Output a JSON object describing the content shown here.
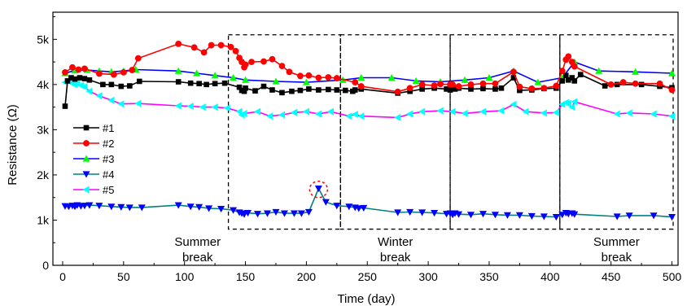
{
  "chart_data": {
    "type": "line",
    "xlabel": "Time (day)",
    "ylabel": "Resistance (Ω)",
    "xlim": [
      -8,
      505
    ],
    "ylim": [
      0,
      5600
    ],
    "xticks": [
      0,
      50,
      100,
      150,
      200,
      250,
      300,
      350,
      400,
      450,
      500
    ],
    "xtick_labels": [
      "0",
      "50",
      "100",
      "150",
      "200",
      "250",
      "300",
      "350",
      "400",
      "450",
      "500"
    ],
    "yticks": [
      0,
      1000,
      2000,
      3000,
      4000,
      5000
    ],
    "ytick_labels": [
      "0",
      "1k",
      "2k",
      "3k",
      "4k",
      "5k"
    ],
    "legend_position": "left",
    "series": [
      {
        "name": "#1",
        "color": "#000000",
        "marker": "square",
        "x": [
          2,
          4,
          7,
          10,
          14,
          18,
          22,
          33,
          40,
          48,
          55,
          63,
          95,
          105,
          112,
          118,
          125,
          133,
          145,
          147,
          149,
          150,
          158,
          165,
          172,
          180,
          188,
          195,
          202,
          210,
          218,
          225,
          232,
          238,
          240,
          245,
          275,
          285,
          295,
          305,
          315,
          318,
          320,
          322,
          325,
          335,
          345,
          355,
          360,
          370,
          375,
          385,
          395,
          405,
          410,
          413,
          415,
          418,
          420,
          425,
          445,
          455,
          475,
          490,
          500
        ],
        "y": [
          3520,
          4080,
          4150,
          4120,
          4150,
          4130,
          4100,
          4000,
          4000,
          3960,
          3970,
          4070,
          4060,
          4030,
          4020,
          4000,
          4020,
          4030,
          3940,
          3870,
          3850,
          3920,
          3860,
          3960,
          3880,
          3820,
          3850,
          3870,
          3900,
          3880,
          3890,
          3880,
          3870,
          3850,
          3880,
          3900,
          3810,
          3850,
          3900,
          3920,
          3900,
          3880,
          3960,
          3900,
          3920,
          3900,
          3910,
          3900,
          3920,
          4150,
          3870,
          3880,
          3910,
          3920,
          4080,
          4200,
          4100,
          4150,
          4080,
          4220,
          3970,
          4000,
          4000,
          3960,
          3930
        ]
      },
      {
        "name": "#2",
        "color": "#ff0000",
        "marker": "circle",
        "x": [
          2,
          8,
          13,
          18,
          30,
          42,
          50,
          57,
          62,
          95,
          108,
          116,
          122,
          130,
          138,
          142,
          145,
          147,
          149,
          150,
          155,
          165,
          172,
          180,
          186,
          195,
          202,
          210,
          218,
          225,
          240,
          245,
          275,
          285,
          295,
          305,
          310,
          318,
          320,
          325,
          335,
          345,
          355,
          370,
          375,
          385,
          395,
          405,
          410,
          413,
          415,
          418,
          420,
          450,
          460,
          470,
          490,
          500
        ],
        "y": [
          4270,
          4380,
          4330,
          4350,
          4240,
          4220,
          4270,
          4320,
          4580,
          4900,
          4820,
          4710,
          4870,
          4870,
          4830,
          4740,
          4590,
          4500,
          4380,
          4440,
          4500,
          4510,
          4560,
          4410,
          4280,
          4190,
          4200,
          4150,
          4160,
          4140,
          4050,
          3960,
          3840,
          3920,
          4000,
          3980,
          4010,
          4000,
          4000,
          3960,
          4000,
          4020,
          4020,
          4280,
          3950,
          3910,
          3920,
          3970,
          4300,
          4550,
          4620,
          4500,
          4400,
          4000,
          4050,
          4020,
          4020,
          3880
        ]
      },
      {
        "name": "#3",
        "color": "#0000ff",
        "marker": "triangle",
        "x": [
          2,
          10,
          20,
          30,
          40,
          50,
          60,
          95,
          110,
          125,
          140,
          150,
          175,
          200,
          230,
          245,
          270,
          290,
          310,
          330,
          350,
          370,
          390,
          410,
          420,
          440,
          470,
          500
        ],
        "y": [
          4250,
          4310,
          4320,
          4300,
          4280,
          4300,
          4330,
          4300,
          4250,
          4200,
          4150,
          4100,
          4070,
          4050,
          4100,
          4150,
          4150,
          4080,
          4060,
          4100,
          4150,
          4300,
          4050,
          4150,
          4500,
          4300,
          4280,
          4250
        ]
      },
      {
        "name": "#4",
        "color": "#008080",
        "marker": "triangle-down",
        "x": [
          2,
          5,
          8,
          10,
          12,
          15,
          18,
          22,
          30,
          40,
          48,
          55,
          65,
          95,
          105,
          112,
          120,
          130,
          140,
          145,
          147,
          149,
          152,
          160,
          168,
          175,
          182,
          190,
          196,
          202,
          210,
          216,
          225,
          235,
          240,
          243,
          247,
          275,
          285,
          295,
          305,
          315,
          318,
          320,
          322,
          325,
          335,
          345,
          355,
          365,
          375,
          385,
          395,
          405,
          410,
          413,
          415,
          418,
          420,
          455,
          465,
          485,
          500
        ],
        "y": [
          1310,
          1300,
          1320,
          1300,
          1330,
          1310,
          1320,
          1330,
          1320,
          1300,
          1290,
          1280,
          1280,
          1330,
          1300,
          1290,
          1260,
          1250,
          1220,
          1170,
          1150,
          1130,
          1160,
          1140,
          1150,
          1180,
          1150,
          1150,
          1150,
          1180,
          1700,
          1400,
          1320,
          1300,
          1280,
          1260,
          1270,
          1170,
          1180,
          1170,
          1160,
          1140,
          1150,
          1120,
          1150,
          1130,
          1120,
          1140,
          1120,
          1110,
          1110,
          1090,
          1080,
          1070,
          1120,
          1160,
          1140,
          1150,
          1130,
          1080,
          1100,
          1100,
          1070
        ]
      },
      {
        "name": "#5",
        "color": "#ff00ff",
        "marker": "triangle-left",
        "x": [
          2,
          5,
          8,
          10,
          12,
          15,
          18,
          22,
          30,
          40,
          48,
          62,
          95,
          105,
          115,
          125,
          135,
          145,
          147,
          149,
          160,
          170,
          180,
          190,
          200,
          210,
          220,
          235,
          240,
          245,
          275,
          285,
          295,
          310,
          320,
          330,
          345,
          360,
          370,
          380,
          395,
          405,
          410,
          413,
          415,
          418,
          420,
          455,
          465,
          485,
          500
        ],
        "y": [
          4050,
          4080,
          4020,
          4000,
          4030,
          3980,
          3950,
          3850,
          3750,
          3650,
          3570,
          3580,
          3530,
          3520,
          3500,
          3500,
          3480,
          3400,
          3330,
          3360,
          3400,
          3300,
          3330,
          3380,
          3400,
          3350,
          3400,
          3300,
          3340,
          3300,
          3270,
          3350,
          3400,
          3420,
          3400,
          3360,
          3400,
          3420,
          3560,
          3400,
          3370,
          3380,
          3560,
          3600,
          3580,
          3500,
          3620,
          3350,
          3370,
          3350,
          3300
        ]
      }
    ],
    "regions": [
      {
        "x_start": 136,
        "x_end": 228,
        "label_lines": []
      },
      {
        "x_start": 228,
        "x_end": 318,
        "label_lines": [
          "Winter",
          "break"
        ]
      },
      {
        "x_start": 318,
        "x_end": 408,
        "label_lines": []
      },
      {
        "x_start": 408,
        "x_end": 501,
        "label_lines": [
          "Summer",
          "break"
        ]
      }
    ],
    "region_y_range": [
      800,
      5100
    ],
    "free_labels": [
      {
        "lines": [
          "Summer",
          "break"
        ],
        "x": 80
      }
    ],
    "highlight": {
      "x": 210,
      "y": 1680,
      "color": "#ff0000"
    }
  }
}
